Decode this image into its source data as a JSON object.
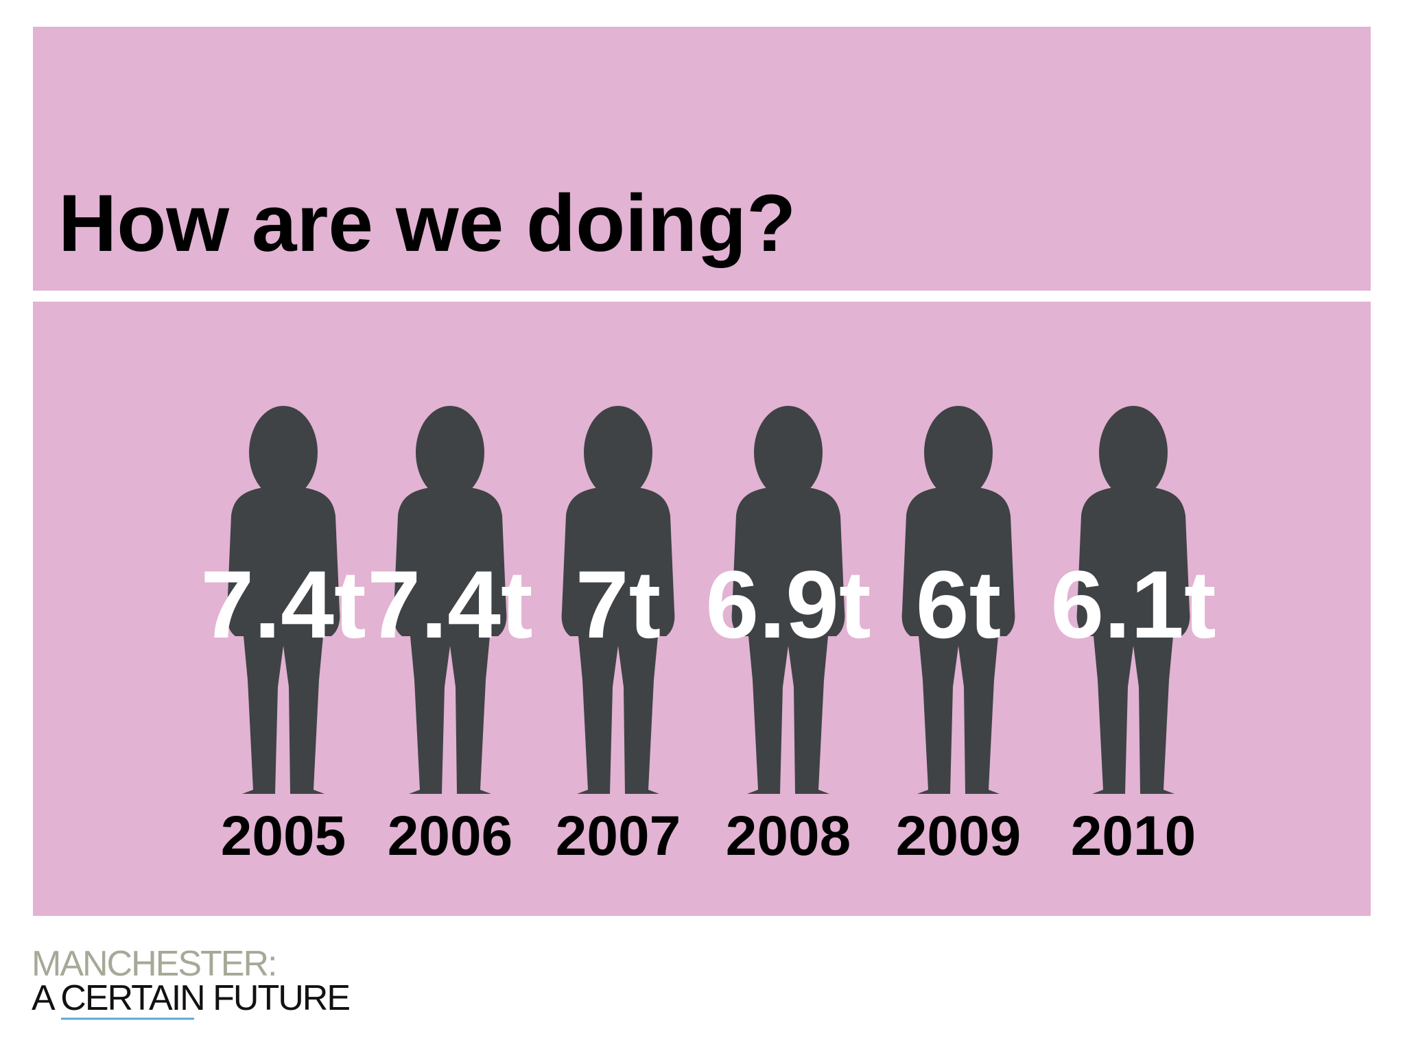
{
  "title": "How are we doing?",
  "items": [
    {
      "value": "7.4t",
      "year": "2005"
    },
    {
      "value": "7.4t",
      "year": "2006"
    },
    {
      "value": "7t",
      "year": "2007"
    },
    {
      "value": "6.9t",
      "year": "2008"
    },
    {
      "value": "6t",
      "year": "2009"
    },
    {
      "value": "6.1t",
      "year": "2010"
    }
  ],
  "footer": {
    "line1": "MANCHESTER:",
    "line2": "A CERTAIN FUTURE"
  }
}
